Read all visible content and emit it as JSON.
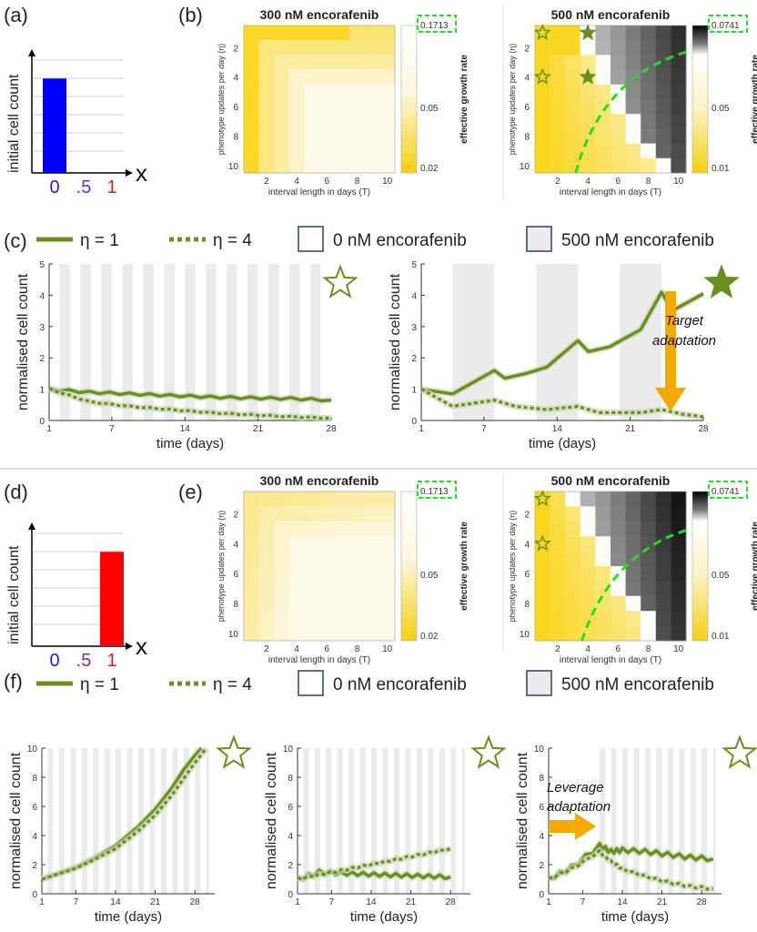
{
  "panels": {
    "a": "(a)",
    "b": "(b)",
    "c": "(c)",
    "d": "(d)",
    "e": "(e)",
    "f": "(f)"
  },
  "colors": {
    "blue": "#0000ff",
    "red": "#ff0000",
    "purple": "#7a2c9c",
    "green": "#6b8e23",
    "orange": "#f5a800",
    "dash_green": "#22dd22",
    "shade": "#ebebeb"
  },
  "bar_panels": [
    {
      "ylabel": "initial cell count",
      "xlabel": "x",
      "ticks": [
        "0",
        ".5",
        "1"
      ],
      "values": [
        0.85,
        0,
        0
      ]
    },
    {
      "ylabel": "initial cell count",
      "xlabel": "x",
      "ticks": [
        "0",
        ".5",
        "1"
      ],
      "values": [
        0,
        0,
        0.85
      ]
    }
  ],
  "legend": {
    "eta1": "η = 1",
    "eta4": "η = 4",
    "nm0": "0 nM encorafenib",
    "nm500": "500 nM encorafenib"
  },
  "heatmaps": {
    "xlabel": "interval length in days (T)",
    "ylabel": "phenotype updates per day (η)",
    "cb_label": "effective growth rate",
    "xticks": [
      "2",
      "4",
      "6",
      "8",
      "10"
    ],
    "yticks": [
      "2",
      "4",
      "6",
      "8",
      "10"
    ],
    "b300": {
      "title": "300 nM encorafenib",
      "cb_max": "0.1713",
      "cb_mid": "0.05",
      "cb_min": "0.02"
    },
    "b500": {
      "title": "500 nM encorafenib",
      "cb_max": "0.0741",
      "cb_mid": "0.05",
      "cb_min": "0.01"
    },
    "e300": {
      "title": "300 nM encorafenib",
      "cb_max": "0.1713",
      "cb_mid": "0.05",
      "cb_min": "0.02"
    },
    "e500": {
      "title": "500 nM encorafenib",
      "cb_max": "0.0741",
      "cb_mid": "0.05",
      "cb_min": "0.01"
    }
  },
  "annotations": {
    "target": "Target",
    "target2": "adaptation",
    "leverage": "Leverage",
    "leverage2": "adaptation"
  },
  "chart_data": [
    {
      "type": "line",
      "id": "c-left",
      "xlabel": "time (days)",
      "ylabel": "normalised cell count",
      "xticks": [
        "1",
        "7",
        "14",
        "21",
        "28"
      ],
      "yticks": [
        "0",
        "1",
        "2",
        "3",
        "4",
        "5"
      ],
      "ylim": [
        0,
        5
      ],
      "series": [
        {
          "name": "η = 1",
          "values": [
            1.0,
            0.9,
            0.85,
            0.8,
            0.75,
            0.72,
            0.7,
            0.65
          ]
        },
        {
          "name": "η = 4",
          "values": [
            1.0,
            0.6,
            0.45,
            0.35,
            0.25,
            0.18,
            0.12,
            0.08
          ]
        }
      ]
    },
    {
      "type": "line",
      "id": "c-right",
      "xlabel": "time (days)",
      "ylabel": "normalised cell count",
      "xticks": [
        "1",
        "7",
        "14",
        "21",
        "28"
      ],
      "yticks": [
        "0",
        "1",
        "2",
        "3",
        "4",
        "5"
      ],
      "ylim": [
        0,
        5
      ],
      "series": [
        {
          "name": "η = 1",
          "x": [
            1,
            4,
            8,
            9,
            11,
            13,
            16,
            17,
            19,
            22,
            24,
            25,
            28
          ],
          "values": [
            1.0,
            0.85,
            1.6,
            1.35,
            1.5,
            1.7,
            2.55,
            2.2,
            2.35,
            2.9,
            4.1,
            3.5,
            4.05
          ]
        },
        {
          "name": "η = 4",
          "x": [
            1,
            4,
            8,
            10,
            13,
            16,
            18,
            22,
            24,
            26,
            28
          ],
          "values": [
            1.0,
            0.45,
            0.65,
            0.45,
            0.35,
            0.45,
            0.25,
            0.25,
            0.35,
            0.2,
            0.12
          ]
        }
      ]
    },
    {
      "type": "line",
      "id": "f-1",
      "xlabel": "time (days)",
      "ylabel": "normalised cell count",
      "xticks": [
        "1",
        "7",
        "14",
        "21",
        "28"
      ],
      "yticks": [
        "0",
        "2",
        "4",
        "6",
        "8",
        "10"
      ],
      "ylim": [
        0,
        10
      ],
      "series": [
        {
          "name": "η = 1",
          "x": [
            1,
            7,
            10,
            14,
            18,
            21,
            24,
            26,
            28,
            29.2
          ],
          "values": [
            1.0,
            1.8,
            2.4,
            3.3,
            4.6,
            5.8,
            7.3,
            8.5,
            9.5,
            10
          ]
        },
        {
          "name": "η = 4",
          "x": [
            1,
            7,
            10,
            14,
            18,
            21,
            24,
            26,
            28,
            30
          ],
          "values": [
            1.0,
            1.75,
            2.3,
            3.1,
            4.3,
            5.4,
            6.8,
            7.9,
            9.0,
            10
          ]
        }
      ]
    },
    {
      "type": "line",
      "id": "f-2",
      "xlabel": "time (days)",
      "ylabel": "normalised cell count",
      "xticks": [
        "1",
        "7",
        "14",
        "21",
        "28"
      ],
      "yticks": [
        "0",
        "2",
        "4",
        "6",
        "8",
        "10"
      ],
      "ylim": [
        0,
        10
      ],
      "series": [
        {
          "name": "η = 1",
          "values": [
            1.0,
            1.5,
            1.4,
            1.35,
            1.3,
            1.25,
            1.2,
            1.15
          ]
        },
        {
          "name": "η = 4",
          "values": [
            1.0,
            1.3,
            1.6,
            1.9,
            2.2,
            2.5,
            2.8,
            3.1
          ]
        }
      ]
    },
    {
      "type": "line",
      "id": "f-3",
      "xlabel": "time (days)",
      "ylabel": "normalised cell count",
      "xticks": [
        "1",
        "7",
        "14",
        "21",
        "28"
      ],
      "yticks": [
        "0",
        "2",
        "4",
        "6",
        "8",
        "10"
      ],
      "ylim": [
        0,
        10
      ],
      "series": [
        {
          "name": "η = 1",
          "x": [
            1,
            5,
            10,
            12,
            14,
            18,
            22,
            26,
            30
          ],
          "values": [
            1.0,
            1.8,
            3.3,
            2.9,
            3.0,
            2.9,
            2.7,
            2.5,
            2.4
          ]
        },
        {
          "name": "η = 4",
          "x": [
            1,
            5,
            10,
            12,
            14,
            18,
            22,
            26,
            30
          ],
          "values": [
            1.0,
            1.7,
            2.9,
            2.2,
            1.7,
            1.2,
            0.8,
            0.5,
            0.35
          ]
        }
      ]
    }
  ]
}
